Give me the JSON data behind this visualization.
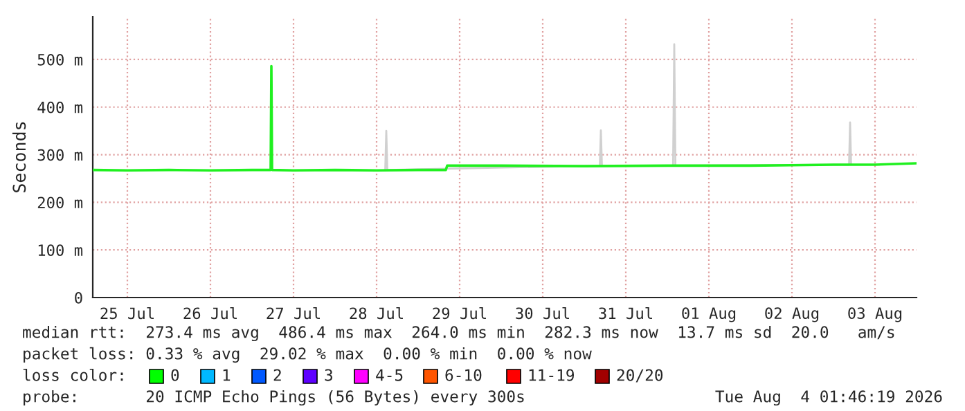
{
  "chart_data": {
    "type": "line",
    "ylabel": "Seconds",
    "xlim": [
      "2026-07-25T02:00",
      "2026-08-04T00:00"
    ],
    "xticks": [
      {
        "value": "2026-07-25T12:00",
        "label": "25 Jul"
      },
      {
        "value": "2026-07-26T12:00",
        "label": "26 Jul"
      },
      {
        "value": "2026-07-27T12:00",
        "label": "27 Jul"
      },
      {
        "value": "2026-07-28T12:00",
        "label": "28 Jul"
      },
      {
        "value": "2026-07-29T12:00",
        "label": "29 Jul"
      },
      {
        "value": "2026-07-30T12:00",
        "label": "30 Jul"
      },
      {
        "value": "2026-07-31T12:00",
        "label": "31 Jul"
      },
      {
        "value": "2026-08-01T12:00",
        "label": "01 Aug"
      },
      {
        "value": "2026-08-02T12:00",
        "label": "02 Aug"
      },
      {
        "value": "2026-08-03T12:00",
        "label": "03 Aug"
      }
    ],
    "ylim": [
      0,
      590
    ],
    "yticks": [
      0,
      {
        "value": 100,
        "label": "100 m"
      },
      {
        "value": 200,
        "label": "200 m"
      },
      {
        "value": 300,
        "label": "300 m"
      },
      {
        "value": 400,
        "label": "400 m"
      },
      {
        "value": 500,
        "label": "500 m"
      }
    ],
    "grid": true,
    "series": [
      {
        "color": "#d0d0d0",
        "x": [
          "2026-07-28T14:30",
          "2026-07-28T14:48",
          "2026-07-28T15:06",
          "2026-07-31T04:30",
          "2026-07-31T04:48",
          "2026-07-31T05:06",
          "2026-08-01T01:40",
          "2026-08-01T02:00",
          "2026-08-01T02:20",
          "2026-08-03T04:30",
          "2026-08-03T04:48",
          "2026-08-03T05:06"
        ],
        "values": [
          268,
          350,
          268,
          277,
          351,
          277,
          277,
          532,
          277,
          279,
          368,
          279
        ]
      },
      {
        "color": "#20f020",
        "x": [
          "2026-07-25T02:00",
          "2026-07-25T12:00",
          "2026-07-26T00:00",
          "2026-07-26T12:00",
          "2026-07-27T00:00",
          "2026-07-27T05:24",
          "2026-07-27T05:36",
          "2026-07-27T05:48",
          "2026-07-27T12:00",
          "2026-07-28T00:00",
          "2026-07-28T12:00",
          "2026-07-29T00:00",
          "2026-07-29T08:00",
          "2026-07-29T08:24",
          "2026-07-30T00:00",
          "2026-07-31T00:00",
          "2026-08-01T00:00",
          "2026-08-02T00:00",
          "2026-08-02T12:00",
          "2026-08-03T00:00",
          "2026-08-03T12:00",
          "2026-08-04T00:00"
        ],
        "values": [
          268,
          267,
          268,
          267,
          268,
          268,
          486,
          268,
          267,
          268,
          267,
          268,
          268,
          277,
          277,
          276,
          277,
          277,
          278,
          279,
          279,
          282
        ]
      }
    ],
    "annotations": [
      "median rtt:  273.4 ms avg  486.4 ms max  264.0 ms min  282.3 ms now  13.7 ms sd  20.0   am/s",
      "packet loss: 0.33 % avg  29.02 % max  0.00 % min  0.00 % now",
      "loss color:",
      "0",
      "1",
      "2",
      "3",
      "4-5",
      "6-10",
      "11-19",
      "20/20",
      "probe:       20 ICMP Echo Pings (56 Bytes) every 300s",
      "Tue Aug  4 01:46:19 2026"
    ]
  }
}
